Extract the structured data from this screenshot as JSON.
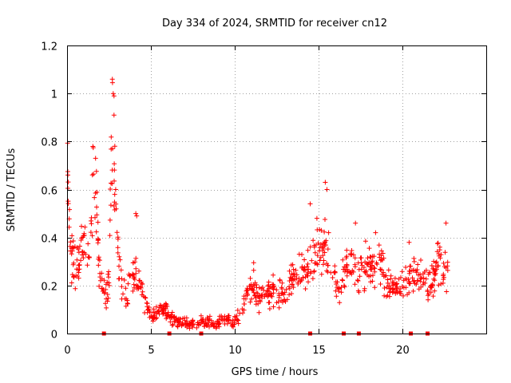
{
  "chart_data": {
    "type": "scatter",
    "title": "Day 334 of 2024, SRMTID for receiver cn12",
    "xlabel": "GPS time / hours",
    "ylabel": "SRMTID / TECUs",
    "xlim": [
      0,
      25
    ],
    "ylim": [
      0,
      1.2
    ],
    "xticks": [
      0,
      5,
      10,
      15,
      20
    ],
    "xtick_labels": [
      "0",
      "5",
      "10",
      "15",
      "20"
    ],
    "yticks": [
      0,
      0.2,
      0.4,
      0.6,
      0.8,
      1.0,
      1.2
    ],
    "ytick_labels": [
      "0",
      "0.2",
      "0.4",
      "0.6",
      "0.8",
      "1",
      "1.2"
    ],
    "grid": true,
    "marker": "+",
    "color": "#ff0000",
    "series": [
      {
        "name": "SRMTID",
        "profile": [
          [
            0.0,
            0.64
          ],
          [
            0.1,
            0.58
          ],
          [
            0.2,
            0.38
          ],
          [
            0.3,
            0.3
          ],
          [
            0.5,
            0.26
          ],
          [
            0.7,
            0.3
          ],
          [
            0.9,
            0.36
          ],
          [
            1.1,
            0.33
          ],
          [
            1.3,
            0.3
          ],
          [
            1.5,
            0.58
          ],
          [
            1.7,
            0.66
          ],
          [
            1.9,
            0.26
          ],
          [
            2.1,
            0.18
          ],
          [
            2.3,
            0.14
          ],
          [
            2.5,
            0.22
          ],
          [
            2.7,
            0.9
          ],
          [
            2.8,
            0.62
          ],
          [
            3.0,
            0.36
          ],
          [
            3.2,
            0.22
          ],
          [
            3.5,
            0.16
          ],
          [
            3.8,
            0.2
          ],
          [
            4.1,
            0.28
          ],
          [
            4.4,
            0.18
          ],
          [
            4.8,
            0.1
          ],
          [
            5.2,
            0.07
          ],
          [
            5.6,
            0.11
          ],
          [
            6.0,
            0.08
          ],
          [
            6.5,
            0.05
          ],
          [
            7.0,
            0.04
          ],
          [
            7.5,
            0.04
          ],
          [
            8.0,
            0.05
          ],
          [
            8.5,
            0.05
          ],
          [
            9.0,
            0.04
          ],
          [
            9.5,
            0.06
          ],
          [
            10.0,
            0.05
          ],
          [
            10.4,
            0.08
          ],
          [
            10.8,
            0.18
          ],
          [
            11.1,
            0.22
          ],
          [
            11.4,
            0.14
          ],
          [
            11.8,
            0.16
          ],
          [
            12.2,
            0.18
          ],
          [
            12.6,
            0.17
          ],
          [
            13.0,
            0.16
          ],
          [
            13.4,
            0.22
          ],
          [
            13.8,
            0.26
          ],
          [
            14.2,
            0.24
          ],
          [
            14.6,
            0.3
          ],
          [
            15.0,
            0.34
          ],
          [
            15.4,
            0.36
          ],
          [
            15.8,
            0.26
          ],
          [
            16.2,
            0.18
          ],
          [
            16.6,
            0.26
          ],
          [
            17.0,
            0.3
          ],
          [
            17.4,
            0.22
          ],
          [
            17.8,
            0.28
          ],
          [
            18.2,
            0.26
          ],
          [
            18.6,
            0.3
          ],
          [
            19.0,
            0.22
          ],
          [
            19.4,
            0.2
          ],
          [
            19.8,
            0.18
          ],
          [
            20.2,
            0.24
          ],
          [
            20.6,
            0.26
          ],
          [
            21.0,
            0.24
          ],
          [
            21.4,
            0.2
          ],
          [
            21.8,
            0.22
          ],
          [
            22.2,
            0.3
          ],
          [
            22.6,
            0.24
          ],
          [
            22.8,
            0.22
          ]
        ],
        "spikes": [
          [
            0.05,
            0.66
          ],
          [
            1.7,
            0.73
          ],
          [
            2.75,
            1.0
          ],
          [
            2.8,
            0.99
          ],
          [
            2.8,
            0.91
          ],
          [
            2.85,
            0.78
          ],
          [
            2.9,
            0.6
          ],
          [
            4.1,
            0.5
          ],
          [
            4.15,
            0.49
          ],
          [
            14.5,
            0.54
          ],
          [
            14.9,
            0.48
          ],
          [
            15.4,
            0.63
          ],
          [
            15.5,
            0.6
          ],
          [
            15.6,
            0.42
          ],
          [
            17.2,
            0.46
          ],
          [
            18.4,
            0.42
          ],
          [
            20.4,
            0.38
          ],
          [
            22.6,
            0.46
          ]
        ],
        "zeros": [
          2.2,
          6.1,
          8.0,
          14.5,
          16.5,
          17.4,
          20.5,
          21.5
        ]
      }
    ]
  }
}
